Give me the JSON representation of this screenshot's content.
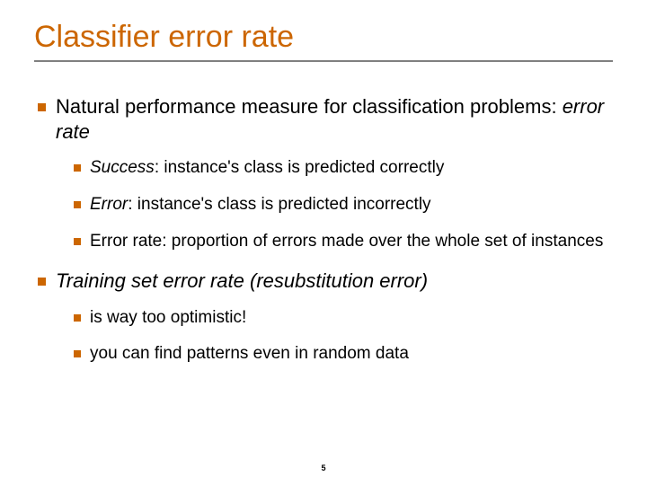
{
  "colors": {
    "accent": "#cc6600",
    "rule": "#808080",
    "text": "#000000",
    "background": "#ffffff"
  },
  "title": "Classifier error rate",
  "bullets": {
    "b1_pre": "Natural performance measure for classification problems: ",
    "b1_em": "error rate",
    "b1a_em": "Success",
    "b1a_rest": ": instance's class is predicted correctly",
    "b1b_em": "Error",
    "b1b_rest": ": instance's class is predicted incorrectly",
    "b1c": "Error rate: proportion of errors made over the whole set of instances",
    "b2_em": "Training set error rate (resubstitution error)",
    "b2a": "is way too optimistic!",
    "b2b": "you can find patterns even in random data"
  },
  "page_number": "5"
}
